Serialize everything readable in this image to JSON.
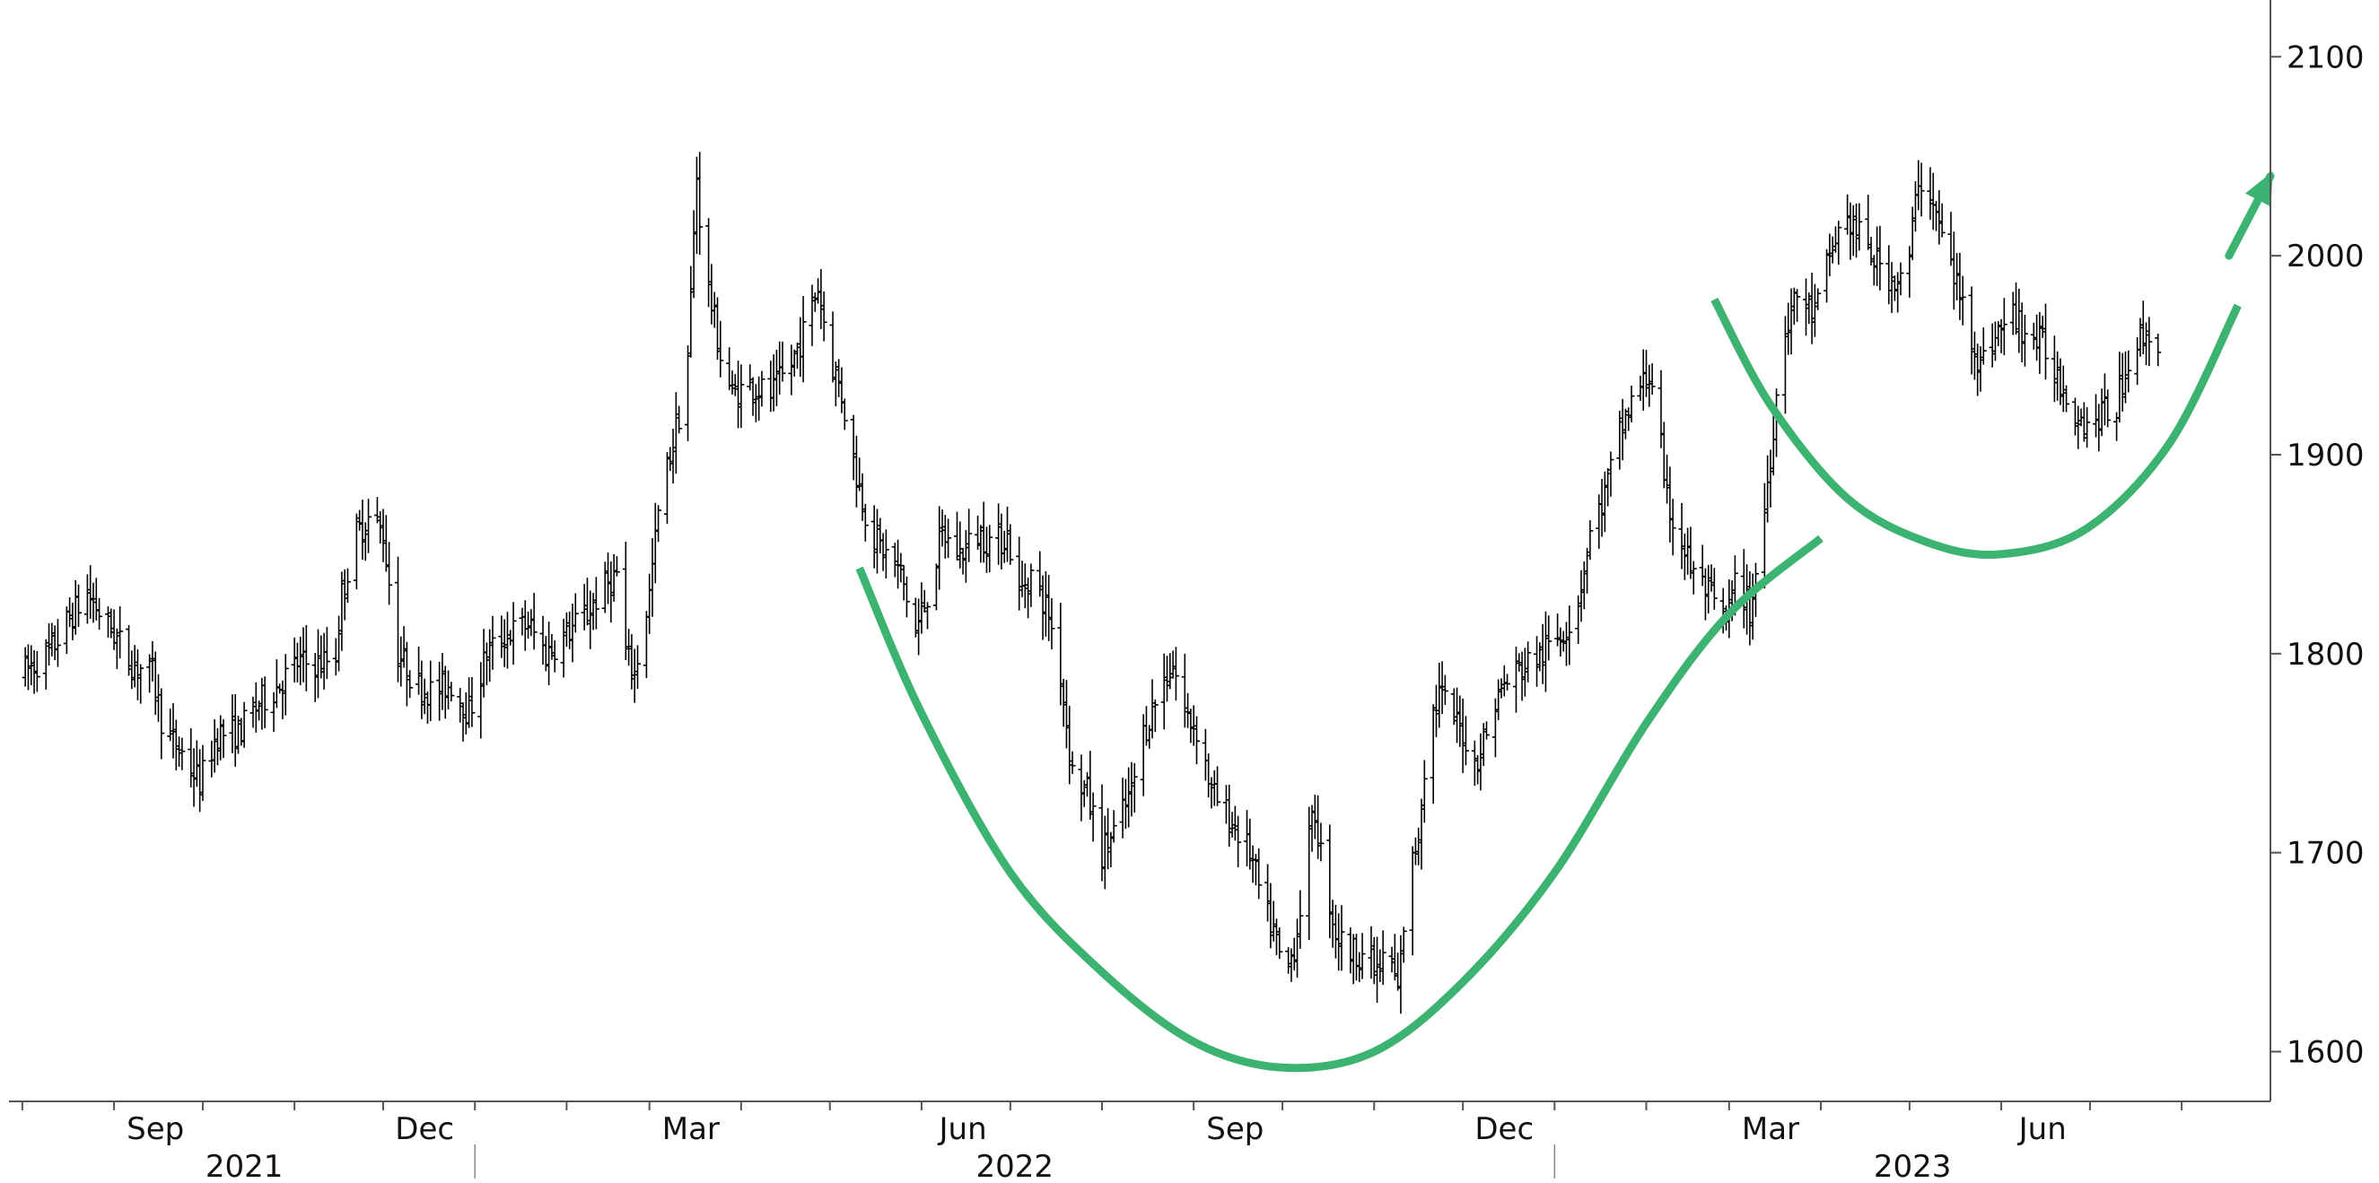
{
  "chart_data": {
    "type": "ohlc",
    "title": "",
    "xlabel": "",
    "ylabel": "",
    "ylim": [
      1575,
      2115
    ],
    "yticks": [
      1600,
      1700,
      1800,
      1900,
      2000,
      2100
    ],
    "ytick_labels": [
      "1600",
      "1700",
      "1800",
      "1900",
      "2000",
      "2100"
    ],
    "y_axis_position": "right",
    "xlim": [
      "2021-07-29",
      "2023-08-31"
    ],
    "month_ticks": [
      "2021-08-01",
      "2021-09-01",
      "2021-10-01",
      "2021-11-01",
      "2021-12-01",
      "2022-01-01",
      "2022-02-01",
      "2022-03-01",
      "2022-04-01",
      "2022-05-01",
      "2022-06-01",
      "2022-07-01",
      "2022-08-01",
      "2022-09-01",
      "2022-10-01",
      "2022-11-01",
      "2022-12-01",
      "2023-01-01",
      "2023-02-01",
      "2023-03-01",
      "2023-04-01",
      "2023-05-01",
      "2023-06-01",
      "2023-07-01",
      "2023-08-01"
    ],
    "month_labels": [
      {
        "date": "2021-09-15",
        "text": "Sep"
      },
      {
        "date": "2021-12-15",
        "text": "Dec"
      },
      {
        "date": "2022-03-15",
        "text": "Mar"
      },
      {
        "date": "2022-06-15",
        "text": "Jun"
      },
      {
        "date": "2022-09-15",
        "text": "Sep"
      },
      {
        "date": "2022-12-15",
        "text": "Dec"
      },
      {
        "date": "2023-03-15",
        "text": "Mar"
      },
      {
        "date": "2023-06-15",
        "text": "Jun"
      }
    ],
    "year_labels": [
      {
        "text": "2021",
        "from": "2021-07-29",
        "to": "2022-01-01"
      },
      {
        "text": "2022",
        "from": "2022-01-01",
        "to": "2023-01-01"
      },
      {
        "text": "2023",
        "from": "2023-01-01",
        "to": "2023-08-31"
      }
    ],
    "year_dividers": [
      "2022-01-01",
      "2023-01-01"
    ],
    "grid": false,
    "bar_color": "#000000",
    "series": [
      {
        "style": "ohlc-bars",
        "bar_interval": "daily",
        "bars_drawn_from": "anchor-points",
        "anchor_points": [
          {
            "x": "2021-08-01",
            "y": 1790
          },
          {
            "x": "2021-08-10",
            "y": 1800
          },
          {
            "x": "2021-08-18",
            "y": 1820
          },
          {
            "x": "2021-08-23",
            "y": 1830
          },
          {
            "x": "2021-09-01",
            "y": 1810
          },
          {
            "x": "2021-09-07",
            "y": 1795
          },
          {
            "x": "2021-09-14",
            "y": 1790
          },
          {
            "x": "2021-09-18",
            "y": 1760
          },
          {
            "x": "2021-09-24",
            "y": 1750
          },
          {
            "x": "2021-09-30",
            "y": 1735
          },
          {
            "x": "2021-10-06",
            "y": 1760
          },
          {
            "x": "2021-10-13",
            "y": 1760
          },
          {
            "x": "2021-10-20",
            "y": 1775
          },
          {
            "x": "2021-10-27",
            "y": 1785
          },
          {
            "x": "2021-11-02",
            "y": 1795
          },
          {
            "x": "2021-11-10",
            "y": 1795
          },
          {
            "x": "2021-11-15",
            "y": 1800
          },
          {
            "x": "2021-11-17",
            "y": 1830
          },
          {
            "x": "2021-11-22",
            "y": 1860
          },
          {
            "x": "2021-11-27",
            "y": 1870
          },
          {
            "x": "2021-12-01",
            "y": 1860
          },
          {
            "x": "2021-12-06",
            "y": 1800
          },
          {
            "x": "2021-12-12",
            "y": 1785
          },
          {
            "x": "2021-12-18",
            "y": 1780
          },
          {
            "x": "2021-12-24",
            "y": 1785
          },
          {
            "x": "2021-12-30",
            "y": 1770
          },
          {
            "x": "2022-01-05",
            "y": 1800
          },
          {
            "x": "2022-01-12",
            "y": 1810
          },
          {
            "x": "2022-01-19",
            "y": 1815
          },
          {
            "x": "2022-01-25",
            "y": 1800
          },
          {
            "x": "2022-02-01",
            "y": 1810
          },
          {
            "x": "2022-02-08",
            "y": 1820
          },
          {
            "x": "2022-02-12",
            "y": 1830
          },
          {
            "x": "2022-02-18",
            "y": 1840
          },
          {
            "x": "2022-02-21",
            "y": 1800
          },
          {
            "x": "2022-02-24",
            "y": 1790
          },
          {
            "x": "2022-03-01",
            "y": 1830
          },
          {
            "x": "2022-03-04",
            "y": 1870
          },
          {
            "x": "2022-03-08",
            "y": 1900
          },
          {
            "x": "2022-03-11",
            "y": 1920
          },
          {
            "x": "2022-03-14",
            "y": 1950
          },
          {
            "x": "2022-03-17",
            "y": 2040
          },
          {
            "x": "2022-03-19",
            "y": 2000
          },
          {
            "x": "2022-03-22",
            "y": 1975
          },
          {
            "x": "2022-03-25",
            "y": 1950
          },
          {
            "x": "2022-03-29",
            "y": 1930
          },
          {
            "x": "2022-04-04",
            "y": 1935
          },
          {
            "x": "2022-04-11",
            "y": 1930
          },
          {
            "x": "2022-04-18",
            "y": 1945
          },
          {
            "x": "2022-04-23",
            "y": 1965
          },
          {
            "x": "2022-04-27",
            "y": 1985
          },
          {
            "x": "2022-05-01",
            "y": 1950
          },
          {
            "x": "2022-05-05",
            "y": 1930
          },
          {
            "x": "2022-05-10",
            "y": 1890
          },
          {
            "x": "2022-05-15",
            "y": 1860
          },
          {
            "x": "2022-05-20",
            "y": 1850
          },
          {
            "x": "2022-05-25",
            "y": 1840
          },
          {
            "x": "2022-05-30",
            "y": 1810
          },
          {
            "x": "2022-06-03",
            "y": 1830
          },
          {
            "x": "2022-06-08",
            "y": 1860
          },
          {
            "x": "2022-06-14",
            "y": 1850
          },
          {
            "x": "2022-06-20",
            "y": 1860
          },
          {
            "x": "2022-06-26",
            "y": 1855
          },
          {
            "x": "2022-06-30",
            "y": 1860
          },
          {
            "x": "2022-07-04",
            "y": 1830
          },
          {
            "x": "2022-07-08",
            "y": 1840
          },
          {
            "x": "2022-07-14",
            "y": 1820
          },
          {
            "x": "2022-07-18",
            "y": 1790
          },
          {
            "x": "2022-07-22",
            "y": 1740
          },
          {
            "x": "2022-07-27",
            "y": 1730
          },
          {
            "x": "2022-08-01",
            "y": 1700
          },
          {
            "x": "2022-08-05",
            "y": 1710
          },
          {
            "x": "2022-08-11",
            "y": 1730
          },
          {
            "x": "2022-08-15",
            "y": 1760
          },
          {
            "x": "2022-08-20",
            "y": 1780
          },
          {
            "x": "2022-08-25",
            "y": 1795
          },
          {
            "x": "2022-08-29",
            "y": 1770
          },
          {
            "x": "2022-09-03",
            "y": 1760
          },
          {
            "x": "2022-09-07",
            "y": 1730
          },
          {
            "x": "2022-09-12",
            "y": 1720
          },
          {
            "x": "2022-09-16",
            "y": 1710
          },
          {
            "x": "2022-09-20",
            "y": 1700
          },
          {
            "x": "2022-09-25",
            "y": 1670
          },
          {
            "x": "2022-09-28",
            "y": 1660
          },
          {
            "x": "2022-10-02",
            "y": 1635
          },
          {
            "x": "2022-10-06",
            "y": 1660
          },
          {
            "x": "2022-10-09",
            "y": 1700
          },
          {
            "x": "2022-10-12",
            "y": 1720
          },
          {
            "x": "2022-10-15",
            "y": 1690
          },
          {
            "x": "2022-10-19",
            "y": 1660
          },
          {
            "x": "2022-10-23",
            "y": 1650
          },
          {
            "x": "2022-10-28",
            "y": 1650
          },
          {
            "x": "2022-11-02",
            "y": 1640
          },
          {
            "x": "2022-11-06",
            "y": 1650
          },
          {
            "x": "2022-11-09",
            "y": 1630
          },
          {
            "x": "2022-11-12",
            "y": 1680
          },
          {
            "x": "2022-11-16",
            "y": 1710
          },
          {
            "x": "2022-11-19",
            "y": 1760
          },
          {
            "x": "2022-11-23",
            "y": 1780
          },
          {
            "x": "2022-11-27",
            "y": 1770
          },
          {
            "x": "2022-12-01",
            "y": 1760
          },
          {
            "x": "2022-12-05",
            "y": 1745
          },
          {
            "x": "2022-12-09",
            "y": 1760
          },
          {
            "x": "2022-12-13",
            "y": 1780
          },
          {
            "x": "2022-12-18",
            "y": 1790
          },
          {
            "x": "2022-12-23",
            "y": 1795
          },
          {
            "x": "2022-12-28",
            "y": 1800
          },
          {
            "x": "2023-01-03",
            "y": 1810
          },
          {
            "x": "2023-01-08",
            "y": 1820
          },
          {
            "x": "2023-01-13",
            "y": 1860
          },
          {
            "x": "2023-01-18",
            "y": 1880
          },
          {
            "x": "2023-01-23",
            "y": 1910
          },
          {
            "x": "2023-01-28",
            "y": 1930
          },
          {
            "x": "2023-02-02",
            "y": 1940
          },
          {
            "x": "2023-02-05",
            "y": 1930
          },
          {
            "x": "2023-02-07",
            "y": 1880
          },
          {
            "x": "2023-02-12",
            "y": 1860
          },
          {
            "x": "2023-02-17",
            "y": 1840
          },
          {
            "x": "2023-02-22",
            "y": 1830
          },
          {
            "x": "2023-02-28",
            "y": 1815
          },
          {
            "x": "2023-03-04",
            "y": 1840
          },
          {
            "x": "2023-03-08",
            "y": 1820
          },
          {
            "x": "2023-03-12",
            "y": 1860
          },
          {
            "x": "2023-03-15",
            "y": 1900
          },
          {
            "x": "2023-03-19",
            "y": 1960
          },
          {
            "x": "2023-03-24",
            "y": 1980
          },
          {
            "x": "2023-03-30",
            "y": 1970
          },
          {
            "x": "2023-04-04",
            "y": 2000
          },
          {
            "x": "2023-04-09",
            "y": 2020
          },
          {
            "x": "2023-04-14",
            "y": 2010
          },
          {
            "x": "2023-04-18",
            "y": 2000
          },
          {
            "x": "2023-04-24",
            "y": 1990
          },
          {
            "x": "2023-04-30",
            "y": 1985
          },
          {
            "x": "2023-05-04",
            "y": 2040
          },
          {
            "x": "2023-05-08",
            "y": 2030
          },
          {
            "x": "2023-05-12",
            "y": 2010
          },
          {
            "x": "2023-05-16",
            "y": 1990
          },
          {
            "x": "2023-05-20",
            "y": 1970
          },
          {
            "x": "2023-05-25",
            "y": 1945
          },
          {
            "x": "2023-05-30",
            "y": 1960
          },
          {
            "x": "2023-06-05",
            "y": 1970
          },
          {
            "x": "2023-06-10",
            "y": 1960
          },
          {
            "x": "2023-06-15",
            "y": 1955
          },
          {
            "x": "2023-06-20",
            "y": 1940
          },
          {
            "x": "2023-06-25",
            "y": 1925
          },
          {
            "x": "2023-06-30",
            "y": 1915
          },
          {
            "x": "2023-07-05",
            "y": 1920
          },
          {
            "x": "2023-07-10",
            "y": 1925
          },
          {
            "x": "2023-07-15",
            "y": 1955
          },
          {
            "x": "2023-07-20",
            "y": 1960
          },
          {
            "x": "2023-07-24",
            "y": 1958
          }
        ]
      }
    ],
    "annotations": [
      {
        "type": "cup-curve",
        "color": "#3cb371",
        "points": [
          {
            "x": "2022-05-11",
            "y": 1843
          },
          {
            "x": "2022-06-01",
            "y": 1770
          },
          {
            "x": "2022-07-01",
            "y": 1690
          },
          {
            "x": "2022-08-01",
            "y": 1640
          },
          {
            "x": "2022-09-01",
            "y": 1605
          },
          {
            "x": "2022-10-01",
            "y": 1592
          },
          {
            "x": "2022-11-01",
            "y": 1600
          },
          {
            "x": "2022-12-01",
            "y": 1635
          },
          {
            "x": "2023-01-01",
            "y": 1690
          },
          {
            "x": "2023-02-01",
            "y": 1765
          },
          {
            "x": "2023-03-01",
            "y": 1820
          },
          {
            "x": "2023-04-01",
            "y": 1858
          }
        ]
      },
      {
        "type": "handle-curve",
        "color": "#3cb371",
        "points": [
          {
            "x": "2023-02-24",
            "y": 1978
          },
          {
            "x": "2023-03-15",
            "y": 1925
          },
          {
            "x": "2023-04-10",
            "y": 1878
          },
          {
            "x": "2023-05-07",
            "y": 1856
          },
          {
            "x": "2023-06-01",
            "y": 1850
          },
          {
            "x": "2023-06-30",
            "y": 1863
          },
          {
            "x": "2023-07-28",
            "y": 1906
          },
          {
            "x": "2023-08-20",
            "y": 1975
          }
        ]
      },
      {
        "type": "arrow",
        "color": "#3cb371",
        "from": {
          "x": "2023-08-17",
          "y": 2000
        },
        "to": {
          "x": "2023-08-31",
          "y": 2040
        }
      }
    ]
  }
}
